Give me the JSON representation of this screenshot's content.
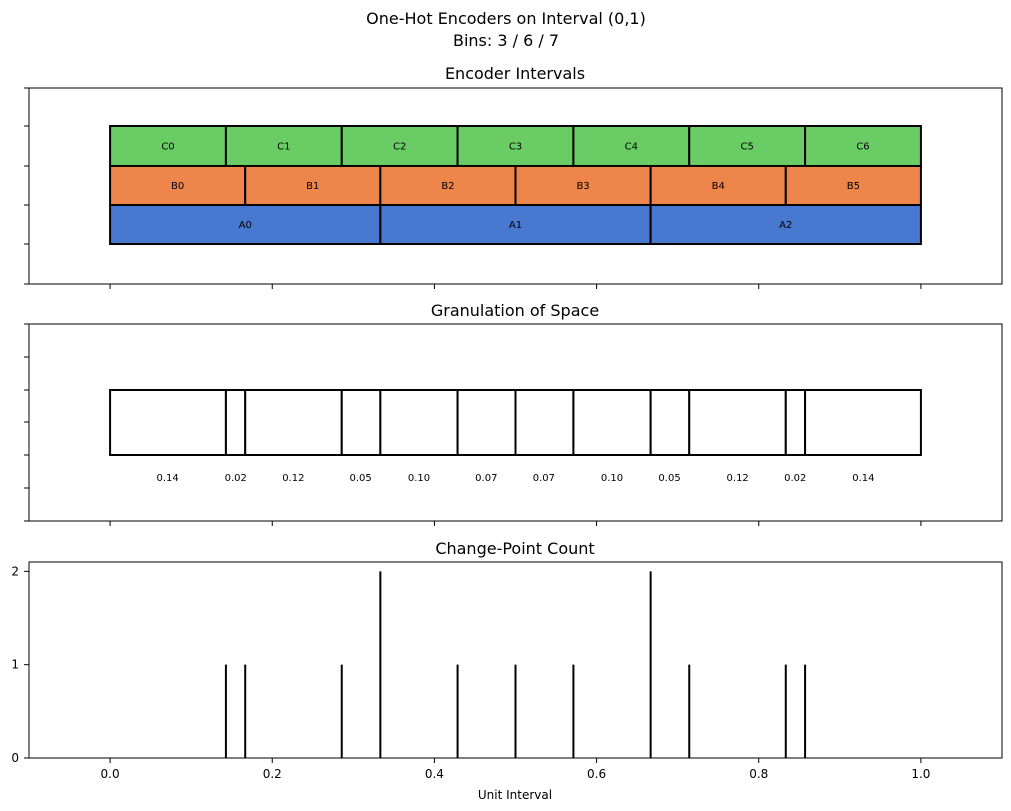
{
  "figure": {
    "title_line1": "One-Hot Encoders on Interval (0,1)",
    "title_line2": "Bins: 3 / 6 / 7"
  },
  "chart_data": [
    {
      "type": "bar",
      "title": "Encoder Intervals",
      "xlim": [
        -0.1,
        1.1
      ],
      "x_ticks": [
        0.0,
        0.2,
        0.4,
        0.6,
        0.8,
        1.0
      ],
      "tick_labels_shown": false,
      "series": [
        {
          "name": "A",
          "bins": 3,
          "color": "#4878cf",
          "labels": [
            "A0",
            "A1",
            "A2"
          ]
        },
        {
          "name": "B",
          "bins": 6,
          "color": "#ee854a",
          "labels": [
            "B0",
            "B1",
            "B2",
            "B3",
            "B4",
            "B5"
          ]
        },
        {
          "name": "C",
          "bins": 7,
          "color": "#6acc64",
          "labels": [
            "C0",
            "C1",
            "C2",
            "C3",
            "C4",
            "C5",
            "C6"
          ]
        }
      ]
    },
    {
      "type": "bar",
      "title": "Granulation of Space",
      "xlim": [
        -0.1,
        1.1
      ],
      "boundaries": [
        0,
        0.142857,
        0.166667,
        0.285714,
        0.333333,
        0.428571,
        0.5,
        0.571429,
        0.666667,
        0.714286,
        0.833333,
        0.857143,
        1
      ],
      "granule_labels": [
        "0.14",
        "0.02",
        "0.12",
        "0.05",
        "0.10",
        "0.07",
        "0.07",
        "0.10",
        "0.05",
        "0.12",
        "0.02",
        "0.14"
      ]
    },
    {
      "type": "bar",
      "title": "Change-Point Count",
      "xlabel": "Unit Interval",
      "xlim": [
        -0.1,
        1.1
      ],
      "ylim": [
        0,
        2.1
      ],
      "x_ticks": [
        0.0,
        0.2,
        0.4,
        0.6,
        0.8,
        1.0
      ],
      "x_tick_labels": [
        "0.0",
        "0.2",
        "0.4",
        "0.6",
        "0.8",
        "1.0"
      ],
      "y_ticks": [
        0,
        1,
        2
      ],
      "y_tick_labels": [
        "0",
        "1",
        "2"
      ],
      "x": [
        0.142857,
        0.166667,
        0.285714,
        0.333333,
        0.428571,
        0.5,
        0.571429,
        0.666667,
        0.714286,
        0.833333,
        0.857143
      ],
      "values": [
        1,
        1,
        1,
        2,
        1,
        1,
        1,
        2,
        1,
        1,
        1
      ]
    }
  ]
}
